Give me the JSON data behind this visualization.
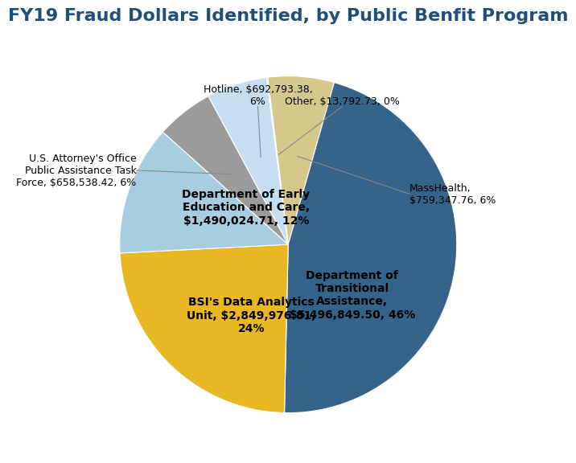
{
  "title": "FY19 Fraud Dollars Identified, by Public Benfit Program",
  "slices": [
    {
      "label_outside": "MassHealth,\n$759,347.76, 6%",
      "label_inside": null,
      "value": 759347.76,
      "color": "#d4c98a"
    },
    {
      "label_outside": null,
      "label_inside": "Department of\nTransitional\nAssistance,\n$5,496,849.50, 46%",
      "value": 5496849.5,
      "color": "#35638a"
    },
    {
      "label_outside": null,
      "label_inside": "BSI's Data Analytics\nUnit, $2,849,976.81,\n24%",
      "value": 2849976.81,
      "color": "#e8b824"
    },
    {
      "label_outside": null,
      "label_inside": "Department of Early\nEducation and Care,\n$1,490,024.71, 12%",
      "value": 1490024.71,
      "color": "#a8cce0"
    },
    {
      "label_outside": "U.S. Attorney's Office\nPublic Assistance Task\nForce, $658,538.42, 6%",
      "label_inside": null,
      "value": 658538.42,
      "color": "#9b9b9b"
    },
    {
      "label_outside": "Hotline, $692,793.38,\n6%",
      "label_inside": null,
      "value": 692793.38,
      "color": "#c5dff0"
    },
    {
      "label_outside": "Other, $13,792.73, 0%",
      "label_inside": null,
      "value": 13792.73,
      "color": "#f0e8c0"
    }
  ],
  "title_fontsize": 16,
  "title_color": "#1f4e79",
  "inside_label_fontsize": 10,
  "outside_label_fontsize": 9,
  "startangle": 97
}
